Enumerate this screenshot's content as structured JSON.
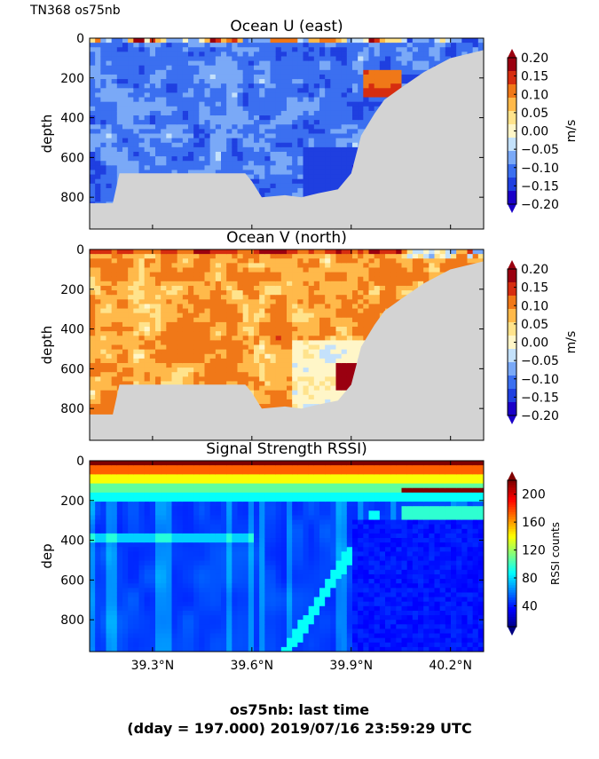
{
  "figure": {
    "corner_label": "TN368 os75nb",
    "footer_line1": "os75nb: last time",
    "footer_line2": "(dday = 197.000) 2019/07/16 23:59:29 UTC"
  },
  "chart_data": [
    {
      "type": "heatmap",
      "title": "Ocean U (east)",
      "ylabel": "depth",
      "xlabel": "",
      "xlim": [
        39.11,
        40.3
      ],
      "ylim": [
        960,
        0
      ],
      "yticks": [
        0,
        200,
        400,
        600,
        800
      ],
      "xticks": [
        39.3,
        39.6,
        39.9,
        40.2
      ],
      "colorbar": {
        "label": "m/s",
        "ticks": [
          "0.20",
          "0.15",
          "0.10",
          "0.05",
          "0.00",
          "−0.05",
          "−0.10",
          "−0.15",
          "−0.20"
        ],
        "range": [
          -0.2,
          0.2
        ],
        "colormap": "blue-white-red"
      },
      "bottom_profile": [
        [
          39.11,
          830
        ],
        [
          39.18,
          830
        ],
        [
          39.2,
          680
        ],
        [
          39.58,
          680
        ],
        [
          39.6,
          720
        ],
        [
          39.63,
          800
        ],
        [
          39.7,
          790
        ],
        [
          39.75,
          800
        ],
        [
          39.8,
          780
        ],
        [
          39.86,
          760
        ],
        [
          39.9,
          680
        ],
        [
          39.93,
          490
        ],
        [
          39.97,
          380
        ],
        [
          40.0,
          310
        ],
        [
          40.05,
          250
        ],
        [
          40.12,
          170
        ],
        [
          40.2,
          100
        ],
        [
          40.3,
          60
        ]
      ],
      "features": [
        {
          "x": 39.95,
          "y": 250,
          "value": 0.1
        },
        {
          "x": 39.9,
          "y": 690,
          "value": -0.2
        },
        {
          "x": 39.6,
          "y": 650,
          "value": -0.15
        }
      ]
    },
    {
      "type": "heatmap",
      "title": "Ocean V (north)",
      "ylabel": "depth",
      "xlabel": "",
      "xlim": [
        39.11,
        40.3
      ],
      "ylim": [
        960,
        0
      ],
      "yticks": [
        0,
        200,
        400,
        600,
        800
      ],
      "xticks": [
        39.3,
        39.6,
        39.9,
        40.2
      ],
      "colorbar": {
        "label": "m/s",
        "ticks": [
          "0.20",
          "0.15",
          "0.10",
          "0.05",
          "0.00",
          "−0.05",
          "−0.10",
          "−0.15",
          "−0.20"
        ],
        "range": [
          -0.2,
          0.2
        ],
        "colormap": "blue-white-red"
      },
      "bottom_profile": [
        [
          39.11,
          830
        ],
        [
          39.18,
          830
        ],
        [
          39.2,
          680
        ],
        [
          39.58,
          680
        ],
        [
          39.6,
          720
        ],
        [
          39.63,
          800
        ],
        [
          39.7,
          790
        ],
        [
          39.75,
          800
        ],
        [
          39.8,
          780
        ],
        [
          39.86,
          760
        ],
        [
          39.9,
          680
        ],
        [
          39.93,
          490
        ],
        [
          39.97,
          380
        ],
        [
          40.0,
          310
        ],
        [
          40.05,
          250
        ],
        [
          40.12,
          170
        ],
        [
          40.2,
          100
        ],
        [
          40.3,
          60
        ]
      ],
      "features": [
        {
          "x": 39.88,
          "y": 680,
          "value": 0.2
        },
        {
          "x": 39.5,
          "y": 300,
          "value": 0.1
        },
        {
          "x": 40.2,
          "y": 40,
          "value": 0.15
        }
      ]
    },
    {
      "type": "heatmap",
      "title": "Signal Strength RSSI)",
      "ylabel": "dep",
      "xlabel": "",
      "xlim": [
        39.11,
        40.3
      ],
      "ylim": [
        960,
        0
      ],
      "yticks": [
        0,
        200,
        400,
        600,
        800
      ],
      "xticks": [
        39.3,
        39.6,
        39.9,
        40.2
      ],
      "xticklabels": [
        "39.3°N",
        "39.6°N",
        "39.9°N",
        "40.2°N"
      ],
      "colorbar": {
        "label": "RSSI counts",
        "ticks": [
          "200",
          "160",
          "120",
          "80",
          "40"
        ],
        "range": [
          10,
          220
        ],
        "colormap": "jet"
      },
      "near_surface_value": 200,
      "deep_value": 30
    }
  ]
}
